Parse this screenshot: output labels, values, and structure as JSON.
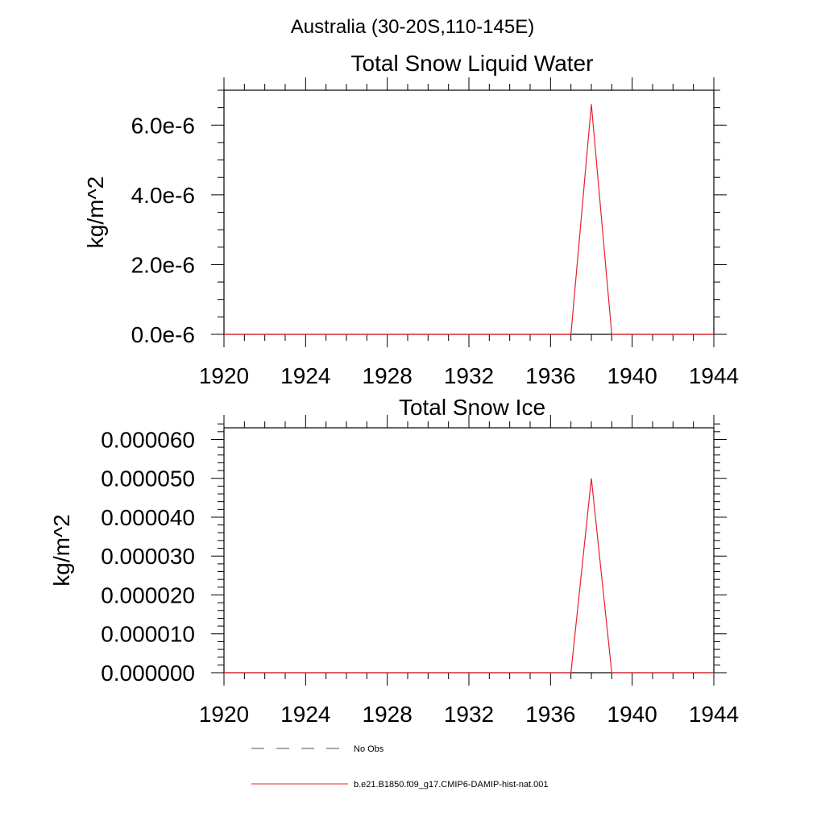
{
  "figure": {
    "title": "Australia (30-20S,110-145E)"
  },
  "colors": {
    "model_line": "#e8202a",
    "obs_line": "#4a5068",
    "axes": "#000000"
  },
  "legend": {
    "items": [
      {
        "label": "No Obs",
        "style": "dashed",
        "color": "#4a5068"
      },
      {
        "label": "b.e21.B1850.f09_g17.CMIP6-DAMIP-hist-nat.001",
        "style": "solid",
        "color": "#e8202a"
      }
    ],
    "placement": "bottom-center"
  },
  "chart_data": [
    {
      "type": "line",
      "title": "Total Snow Liquid Water",
      "xlabel": "",
      "ylabel": "kg/m^2",
      "xlim": [
        1920,
        1944
      ],
      "ylim": [
        0,
        7e-06
      ],
      "x_ticks": [
        1920,
        1924,
        1928,
        1932,
        1936,
        1940,
        1944
      ],
      "x_tick_labels": [
        "1920",
        "1924",
        "1928",
        "1932",
        "1936",
        "1940",
        "1944"
      ],
      "y_ticks": [
        0,
        2e-06,
        4e-06,
        6e-06
      ],
      "y_tick_labels": [
        "0.0e-6",
        "2.0e-6",
        "4.0e-6",
        "6.0e-6"
      ],
      "y_minor_step": 5e-07,
      "grid": false,
      "series": [
        {
          "name": "b.e21.B1850.f09_g17.CMIP6-DAMIP-hist-nat.001",
          "color": "#e8202a",
          "x": [
            1920,
            1921,
            1922,
            1923,
            1924,
            1925,
            1926,
            1927,
            1928,
            1929,
            1930,
            1931,
            1932,
            1933,
            1934,
            1935,
            1936,
            1937,
            1938,
            1939,
            1940,
            1941,
            1942,
            1943,
            1944
          ],
          "y": [
            0,
            0,
            0,
            0,
            0,
            0,
            0,
            0,
            0,
            0,
            0,
            0,
            0,
            0,
            0,
            0,
            0,
            0,
            6.6e-06,
            0,
            0,
            0,
            0,
            0,
            0
          ]
        }
      ]
    },
    {
      "type": "line",
      "title": "Total Snow Ice",
      "xlabel": "",
      "ylabel": "kg/m^2",
      "xlim": [
        1920,
        1944
      ],
      "ylim": [
        0,
        6.3e-05
      ],
      "x_ticks": [
        1920,
        1924,
        1928,
        1932,
        1936,
        1940,
        1944
      ],
      "x_tick_labels": [
        "1920",
        "1924",
        "1928",
        "1932",
        "1936",
        "1940",
        "1944"
      ],
      "y_ticks": [
        0,
        1e-05,
        2e-05,
        3e-05,
        4e-05,
        5e-05,
        6e-05
      ],
      "y_tick_labels": [
        "0.000000",
        "0.000010",
        "0.000020",
        "0.000030",
        "0.000040",
        "0.000050",
        "0.000060"
      ],
      "y_minor_step": 2e-06,
      "grid": false,
      "series": [
        {
          "name": "b.e21.B1850.f09_g17.CMIP6-DAMIP-hist-nat.001",
          "color": "#e8202a",
          "x": [
            1920,
            1921,
            1922,
            1923,
            1924,
            1925,
            1926,
            1927,
            1928,
            1929,
            1930,
            1931,
            1932,
            1933,
            1934,
            1935,
            1936,
            1937,
            1938,
            1939,
            1940,
            1941,
            1942,
            1943,
            1944
          ],
          "y": [
            0,
            0,
            0,
            0,
            0,
            0,
            0,
            0,
            0,
            0,
            0,
            0,
            0,
            0,
            0,
            0,
            0,
            0,
            5e-05,
            0,
            0,
            0,
            0,
            0,
            0
          ]
        }
      ]
    }
  ]
}
